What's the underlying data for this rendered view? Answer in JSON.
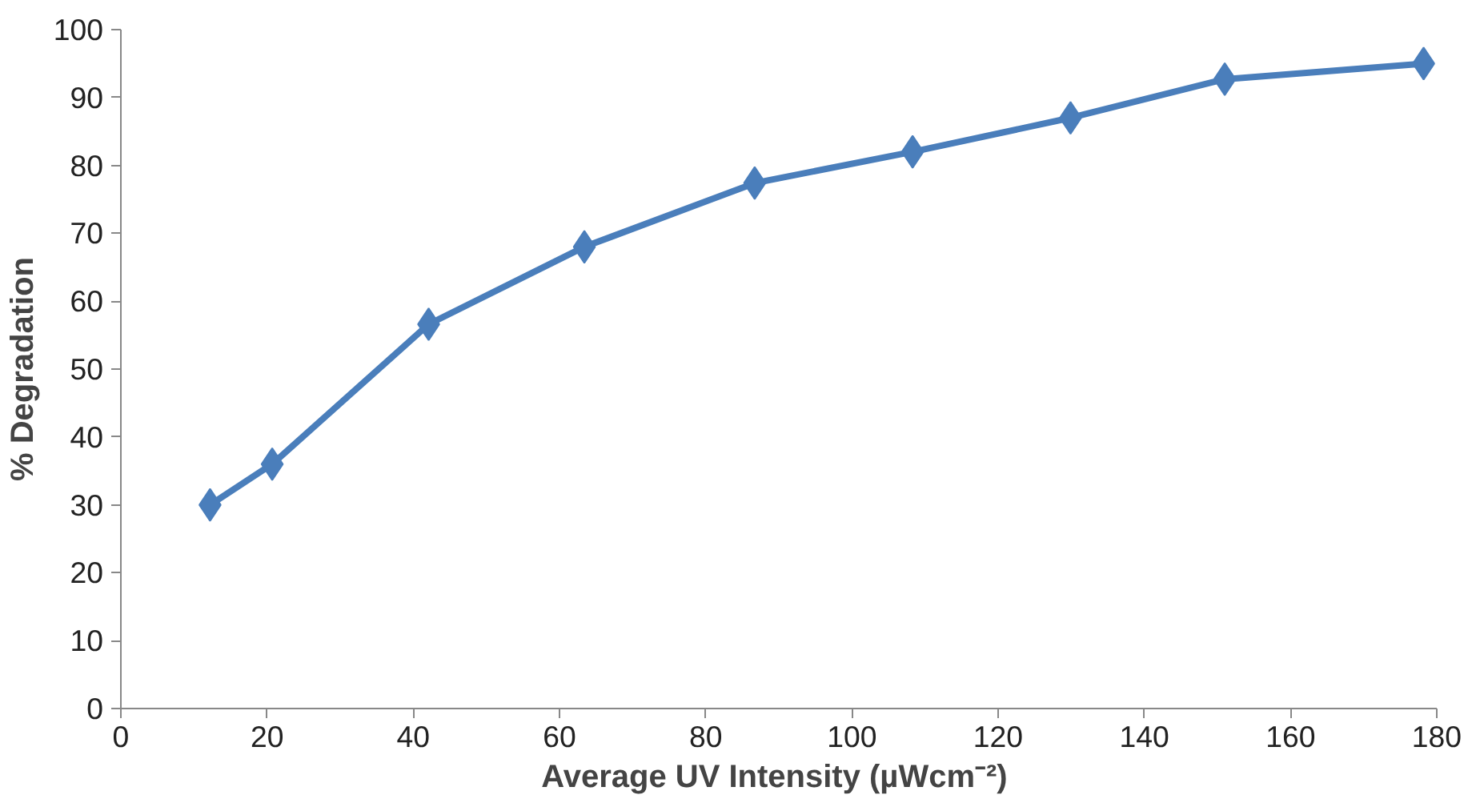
{
  "chart_data": {
    "type": "line",
    "xlabel": "Average UV  Intensity (µWcm⁻²)",
    "ylabel": "% Degradation",
    "x": [
      12.2,
      20.7,
      42.1,
      63.4,
      86.7,
      108.3,
      129.9,
      151.0,
      178.2
    ],
    "series": [
      {
        "color": "#4a7ebb",
        "values": [
          30,
          36,
          56.6,
          68,
          77.4,
          82,
          87,
          92.7,
          95
        ]
      }
    ],
    "xlim": [
      0,
      180
    ],
    "xticks": [
      0,
      20,
      40,
      60,
      80,
      100,
      120,
      140,
      160,
      180
    ],
    "ylim": [
      0,
      100
    ],
    "yticks": [
      0,
      10,
      20,
      30,
      40,
      50,
      60,
      70,
      80,
      90,
      100
    ],
    "grid": false,
    "marker": "diamond",
    "line_style": "solid"
  }
}
